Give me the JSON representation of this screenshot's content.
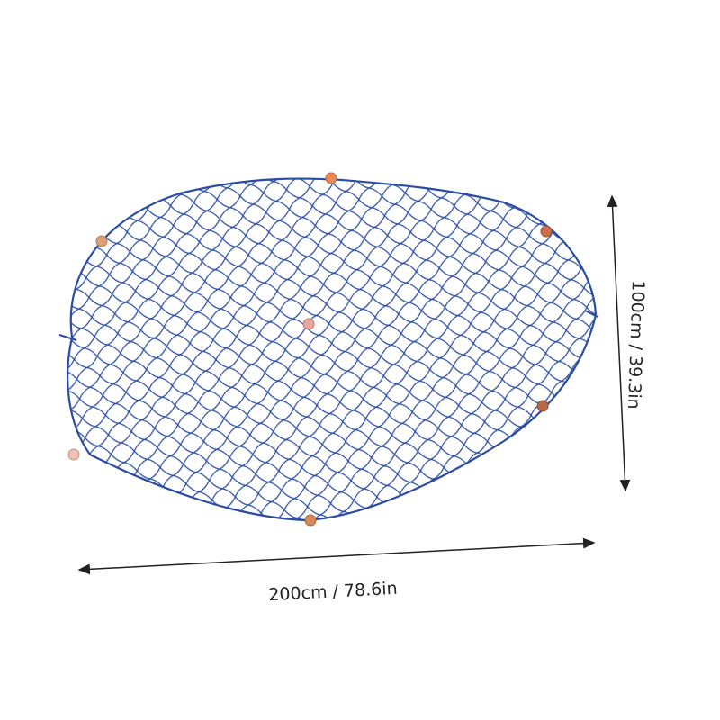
{
  "dimensions": {
    "width": "200cm / 78.6in",
    "height": "100cm / 39.3in"
  }
}
